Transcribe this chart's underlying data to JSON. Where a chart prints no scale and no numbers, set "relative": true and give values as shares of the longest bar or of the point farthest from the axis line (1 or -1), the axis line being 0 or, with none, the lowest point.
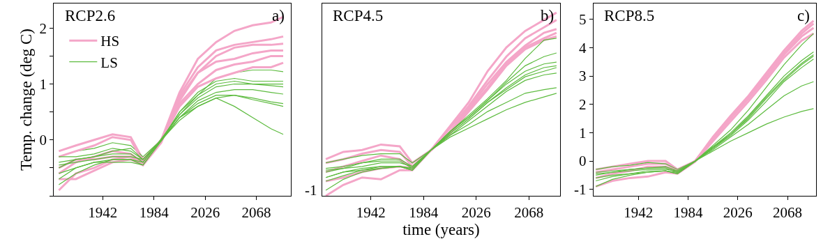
{
  "chart_data": [
    {
      "type": "line",
      "title": "RCP2.6",
      "annotations": [
        "a)"
      ],
      "ylabel": "Temp. change (deg C)",
      "legend": "top left",
      "x": [
        1906,
        1920,
        1935,
        1950,
        1965,
        1975,
        1990,
        2005,
        2020,
        2035,
        2050,
        2065,
        2080,
        2090
      ],
      "xlim": [
        1902,
        2096
      ],
      "xticks": [
        1942,
        1984,
        2026,
        2068
      ],
      "ylim": [
        -1.0,
        2.44
      ],
      "yticks": [
        {
          "value": -1,
          "label": null
        },
        {
          "value": -0.5,
          "label": null
        },
        0,
        {
          "value": 0.5,
          "label": null
        },
        1,
        {
          "value": 1.5,
          "label": null
        },
        2
      ],
      "series": [
        {
          "name": "HS",
          "color": "#f4a6c8",
          "values": [
            -0.2,
            -0.1,
            0.0,
            0.1,
            0.05,
            -0.35,
            0.0,
            0.85,
            1.45,
            1.75,
            1.95,
            2.05,
            2.1,
            2.2
          ]
        },
        {
          "name": "LS",
          "color": "#5dbb3f",
          "values": [
            -0.3,
            -0.2,
            -0.15,
            -0.05,
            -0.1,
            -0.3,
            0.0,
            0.45,
            0.8,
            1.1,
            1.2,
            1.25,
            1.25,
            1.22
          ]
        },
        {
          "color": "#f4a6c8",
          "values": [
            -0.6,
            -0.4,
            -0.3,
            -0.2,
            -0.25,
            -0.4,
            -0.02,
            0.8,
            1.3,
            1.6,
            1.7,
            1.75,
            1.8,
            1.85
          ]
        },
        {
          "color": "#f4a6c8",
          "values": [
            -0.3,
            -0.2,
            -0.1,
            0.05,
            0.0,
            -0.4,
            0.0,
            0.7,
            1.2,
            1.5,
            1.65,
            1.7,
            1.7,
            1.72
          ]
        },
        {
          "color": "#f4a6c8",
          "values": [
            -0.7,
            -0.7,
            -0.55,
            -0.4,
            -0.35,
            -0.45,
            -0.05,
            0.75,
            1.2,
            1.4,
            1.45,
            1.55,
            1.6,
            1.6
          ]
        },
        {
          "color": "#f4a6c8",
          "values": [
            -0.5,
            -0.35,
            -0.35,
            -0.3,
            -0.3,
            -0.45,
            0.0,
            0.65,
            1.0,
            1.25,
            1.35,
            1.4,
            1.5,
            1.5
          ]
        },
        {
          "color": "#f4a6c8",
          "values": [
            -0.9,
            -0.6,
            -0.5,
            -0.35,
            -0.3,
            -0.4,
            -0.02,
            0.6,
            0.95,
            1.1,
            1.2,
            1.3,
            1.3,
            1.38
          ]
        },
        {
          "color": "#5dbb3f",
          "values": [
            -0.5,
            -0.35,
            -0.3,
            -0.2,
            -0.15,
            -0.35,
            -0.02,
            0.5,
            0.85,
            1.05,
            1.1,
            1.05,
            1.05,
            1.05
          ]
        },
        {
          "color": "#5dbb3f",
          "values": [
            -0.8,
            -0.6,
            -0.45,
            -0.35,
            -0.35,
            -0.4,
            0.0,
            0.5,
            0.8,
            1.0,
            1.05,
            1.0,
            1.0,
            1.0
          ]
        },
        {
          "color": "#5dbb3f",
          "values": [
            -0.4,
            -0.35,
            -0.3,
            -0.25,
            -0.25,
            -0.4,
            0.02,
            0.45,
            0.75,
            0.95,
            1.0,
            1.0,
            0.97,
            0.95
          ]
        },
        {
          "color": "#5dbb3f",
          "values": [
            -0.3,
            -0.3,
            -0.25,
            -0.15,
            -0.2,
            -0.35,
            0.0,
            0.4,
            0.7,
            0.85,
            0.9,
            0.9,
            0.85,
            0.82
          ]
        },
        {
          "color": "#5dbb3f",
          "values": [
            -0.6,
            -0.5,
            -0.4,
            -0.4,
            -0.4,
            -0.45,
            -0.02,
            0.4,
            0.65,
            0.8,
            0.8,
            0.75,
            0.68,
            0.65
          ]
        },
        {
          "color": "#5dbb3f",
          "values": [
            -0.45,
            -0.4,
            -0.35,
            -0.3,
            -0.3,
            -0.35,
            0.0,
            0.4,
            0.6,
            0.75,
            0.8,
            0.72,
            0.65,
            0.6
          ]
        },
        {
          "color": "#5dbb3f",
          "values": [
            -0.7,
            -0.5,
            -0.4,
            -0.35,
            -0.35,
            -0.45,
            0.0,
            0.35,
            0.6,
            0.75,
            0.6,
            0.4,
            0.2,
            0.1
          ]
        }
      ]
    },
    {
      "type": "line",
      "title": "RCP4.5",
      "annotations": [
        "b)",
        "-1"
      ],
      "xlabel": "time (years)",
      "x": [
        1906,
        1920,
        1935,
        1950,
        1965,
        1975,
        1990,
        2005,
        2020,
        2035,
        2050,
        2065,
        2080,
        2090
      ],
      "xlim": [
        1903,
        2093
      ],
      "xticks": [
        1942,
        1984,
        2026,
        2068
      ],
      "relative": true,
      "series": [
        {
          "color": "#f4a6c8",
          "values": [
            0.2,
            0.24,
            0.25,
            0.28,
            0.27,
            0.18,
            0.25,
            0.38,
            0.51,
            0.68,
            0.81,
            0.9,
            0.96,
            1
          ]
        },
        {
          "color": "#f4a6c8",
          "values": [
            0.13,
            0.16,
            0.19,
            0.22,
            0.2,
            0.15,
            0.25,
            0.37,
            0.49,
            0.63,
            0.76,
            0.86,
            0.92,
            0.96
          ]
        },
        {
          "color": "#f4a6c8",
          "values": [
            0.18,
            0.2,
            0.23,
            0.25,
            0.24,
            0.16,
            0.25,
            0.35,
            0.48,
            0.61,
            0.73,
            0.82,
            0.89,
            0.91
          ]
        },
        {
          "color": "#f4a6c8",
          "values": [
            0.08,
            0.1,
            0.13,
            0.15,
            0.16,
            0.15,
            0.25,
            0.34,
            0.47,
            0.59,
            0.72,
            0.81,
            0.86,
            0.89
          ]
        },
        {
          "color": "#f4a6c8",
          "values": [
            0,
            0.06,
            0.1,
            0.09,
            0.14,
            0.14,
            0.25,
            0.34,
            0.46,
            0.58,
            0.71,
            0.8,
            0.85,
            0.87
          ]
        },
        {
          "color": "#5dbb3f",
          "values": [
            0.18,
            0.2,
            0.22,
            0.23,
            0.23,
            0.18,
            0.25,
            0.35,
            0.44,
            0.53,
            0.63,
            0.75,
            0.85,
            0.86
          ]
        },
        {
          "color": "#5dbb3f",
          "values": [
            0.13,
            0.15,
            0.18,
            0.2,
            0.2,
            0.16,
            0.25,
            0.35,
            0.43,
            0.52,
            0.62,
            0.71,
            0.76,
            0.78
          ]
        },
        {
          "color": "#5dbb3f",
          "values": [
            0.03,
            0.09,
            0.13,
            0.15,
            0.16,
            0.14,
            0.25,
            0.35,
            0.43,
            0.52,
            0.61,
            0.68,
            0.72,
            0.73
          ]
        },
        {
          "color": "#5dbb3f",
          "values": [
            0.15,
            0.16,
            0.18,
            0.19,
            0.19,
            0.15,
            0.25,
            0.34,
            0.42,
            0.51,
            0.59,
            0.66,
            0.7,
            0.71
          ]
        },
        {
          "color": "#5dbb3f",
          "values": [
            0.1,
            0.13,
            0.14,
            0.15,
            0.16,
            0.14,
            0.25,
            0.34,
            0.42,
            0.51,
            0.58,
            0.65,
            0.68,
            0.7
          ]
        },
        {
          "color": "#5dbb3f",
          "values": [
            0.08,
            0.11,
            0.14,
            0.16,
            0.16,
            0.15,
            0.25,
            0.33,
            0.41,
            0.49,
            0.57,
            0.63,
            0.66,
            0.67
          ]
        },
        {
          "color": "#5dbb3f",
          "values": [
            0.14,
            0.15,
            0.16,
            0.18,
            0.18,
            0.16,
            0.25,
            0.33,
            0.39,
            0.46,
            0.51,
            0.56,
            0.58,
            0.59
          ]
        },
        {
          "color": "#5dbb3f",
          "values": [
            0.1,
            0.13,
            0.15,
            0.16,
            0.16,
            0.15,
            0.25,
            0.32,
            0.37,
            0.42,
            0.47,
            0.51,
            0.54,
            0.56
          ]
        }
      ]
    },
    {
      "type": "line",
      "title": "RCP8.5",
      "annotations": [
        "c)"
      ],
      "x": [
        1906,
        1920,
        1935,
        1950,
        1965,
        1975,
        1990,
        2005,
        2020,
        2035,
        2050,
        2065,
        2080,
        2090
      ],
      "xlim": [
        1904,
        2092
      ],
      "xticks": [
        1942,
        1984,
        2026,
        2068
      ],
      "ylim": [
        -1.23,
        5.56
      ],
      "yticks": [
        -1,
        0,
        1,
        2,
        3,
        4,
        5
      ],
      "series": [
        {
          "color": "#f4a6c8",
          "values": [
            -0.3,
            -0.2,
            -0.1,
            0.0,
            0.0,
            -0.3,
            0.0,
            0.85,
            1.6,
            2.3,
            3.1,
            3.9,
            4.6,
            4.95
          ]
        },
        {
          "color": "#f4a6c8",
          "values": [
            -0.6,
            -0.45,
            -0.35,
            -0.2,
            -0.2,
            -0.4,
            0.0,
            0.8,
            1.55,
            2.25,
            3.0,
            3.8,
            4.5,
            4.85
          ]
        },
        {
          "color": "#f4a6c8",
          "values": [
            -0.4,
            -0.3,
            -0.2,
            -0.1,
            -0.1,
            -0.35,
            0.0,
            0.75,
            1.5,
            2.2,
            2.95,
            3.75,
            4.4,
            4.7
          ]
        },
        {
          "color": "#f4a6c8",
          "values": [
            -0.9,
            -0.7,
            -0.6,
            -0.55,
            -0.4,
            -0.45,
            -0.02,
            0.7,
            1.4,
            2.1,
            2.85,
            3.65,
            4.25,
            4.5
          ]
        },
        {
          "color": "#5dbb3f",
          "values": [
            -0.3,
            -0.2,
            -0.15,
            -0.05,
            -0.1,
            -0.3,
            0.0,
            0.55,
            1.1,
            1.8,
            2.6,
            3.4,
            4.1,
            4.5
          ]
        },
        {
          "color": "#5dbb3f",
          "values": [
            -0.5,
            -0.4,
            -0.3,
            -0.25,
            -0.2,
            -0.35,
            0.0,
            0.5,
            1.0,
            1.6,
            2.3,
            3.0,
            3.55,
            3.85
          ]
        },
        {
          "color": "#5dbb3f",
          "values": [
            -0.9,
            -0.65,
            -0.5,
            -0.4,
            -0.35,
            -0.45,
            0.0,
            0.5,
            0.95,
            1.55,
            2.25,
            2.9,
            3.45,
            3.75
          ]
        },
        {
          "color": "#5dbb3f",
          "values": [
            -0.4,
            -0.35,
            -0.3,
            -0.25,
            -0.25,
            -0.4,
            0.0,
            0.45,
            0.95,
            1.5,
            2.2,
            2.85,
            3.4,
            3.7
          ]
        },
        {
          "color": "#5dbb3f",
          "values": [
            -0.6,
            -0.5,
            -0.45,
            -0.4,
            -0.35,
            -0.45,
            -0.02,
            0.45,
            0.9,
            1.45,
            2.1,
            2.8,
            3.3,
            3.6
          ]
        },
        {
          "color": "#5dbb3f",
          "values": [
            -0.7,
            -0.55,
            -0.45,
            -0.35,
            -0.35,
            -0.4,
            0.0,
            0.4,
            0.85,
            1.3,
            1.8,
            2.3,
            2.65,
            2.8
          ]
        },
        {
          "color": "#5dbb3f",
          "values": [
            -0.45,
            -0.4,
            -0.35,
            -0.3,
            -0.3,
            -0.35,
            0.0,
            0.35,
            0.7,
            1.0,
            1.3,
            1.55,
            1.75,
            1.85
          ]
        }
      ]
    }
  ]
}
